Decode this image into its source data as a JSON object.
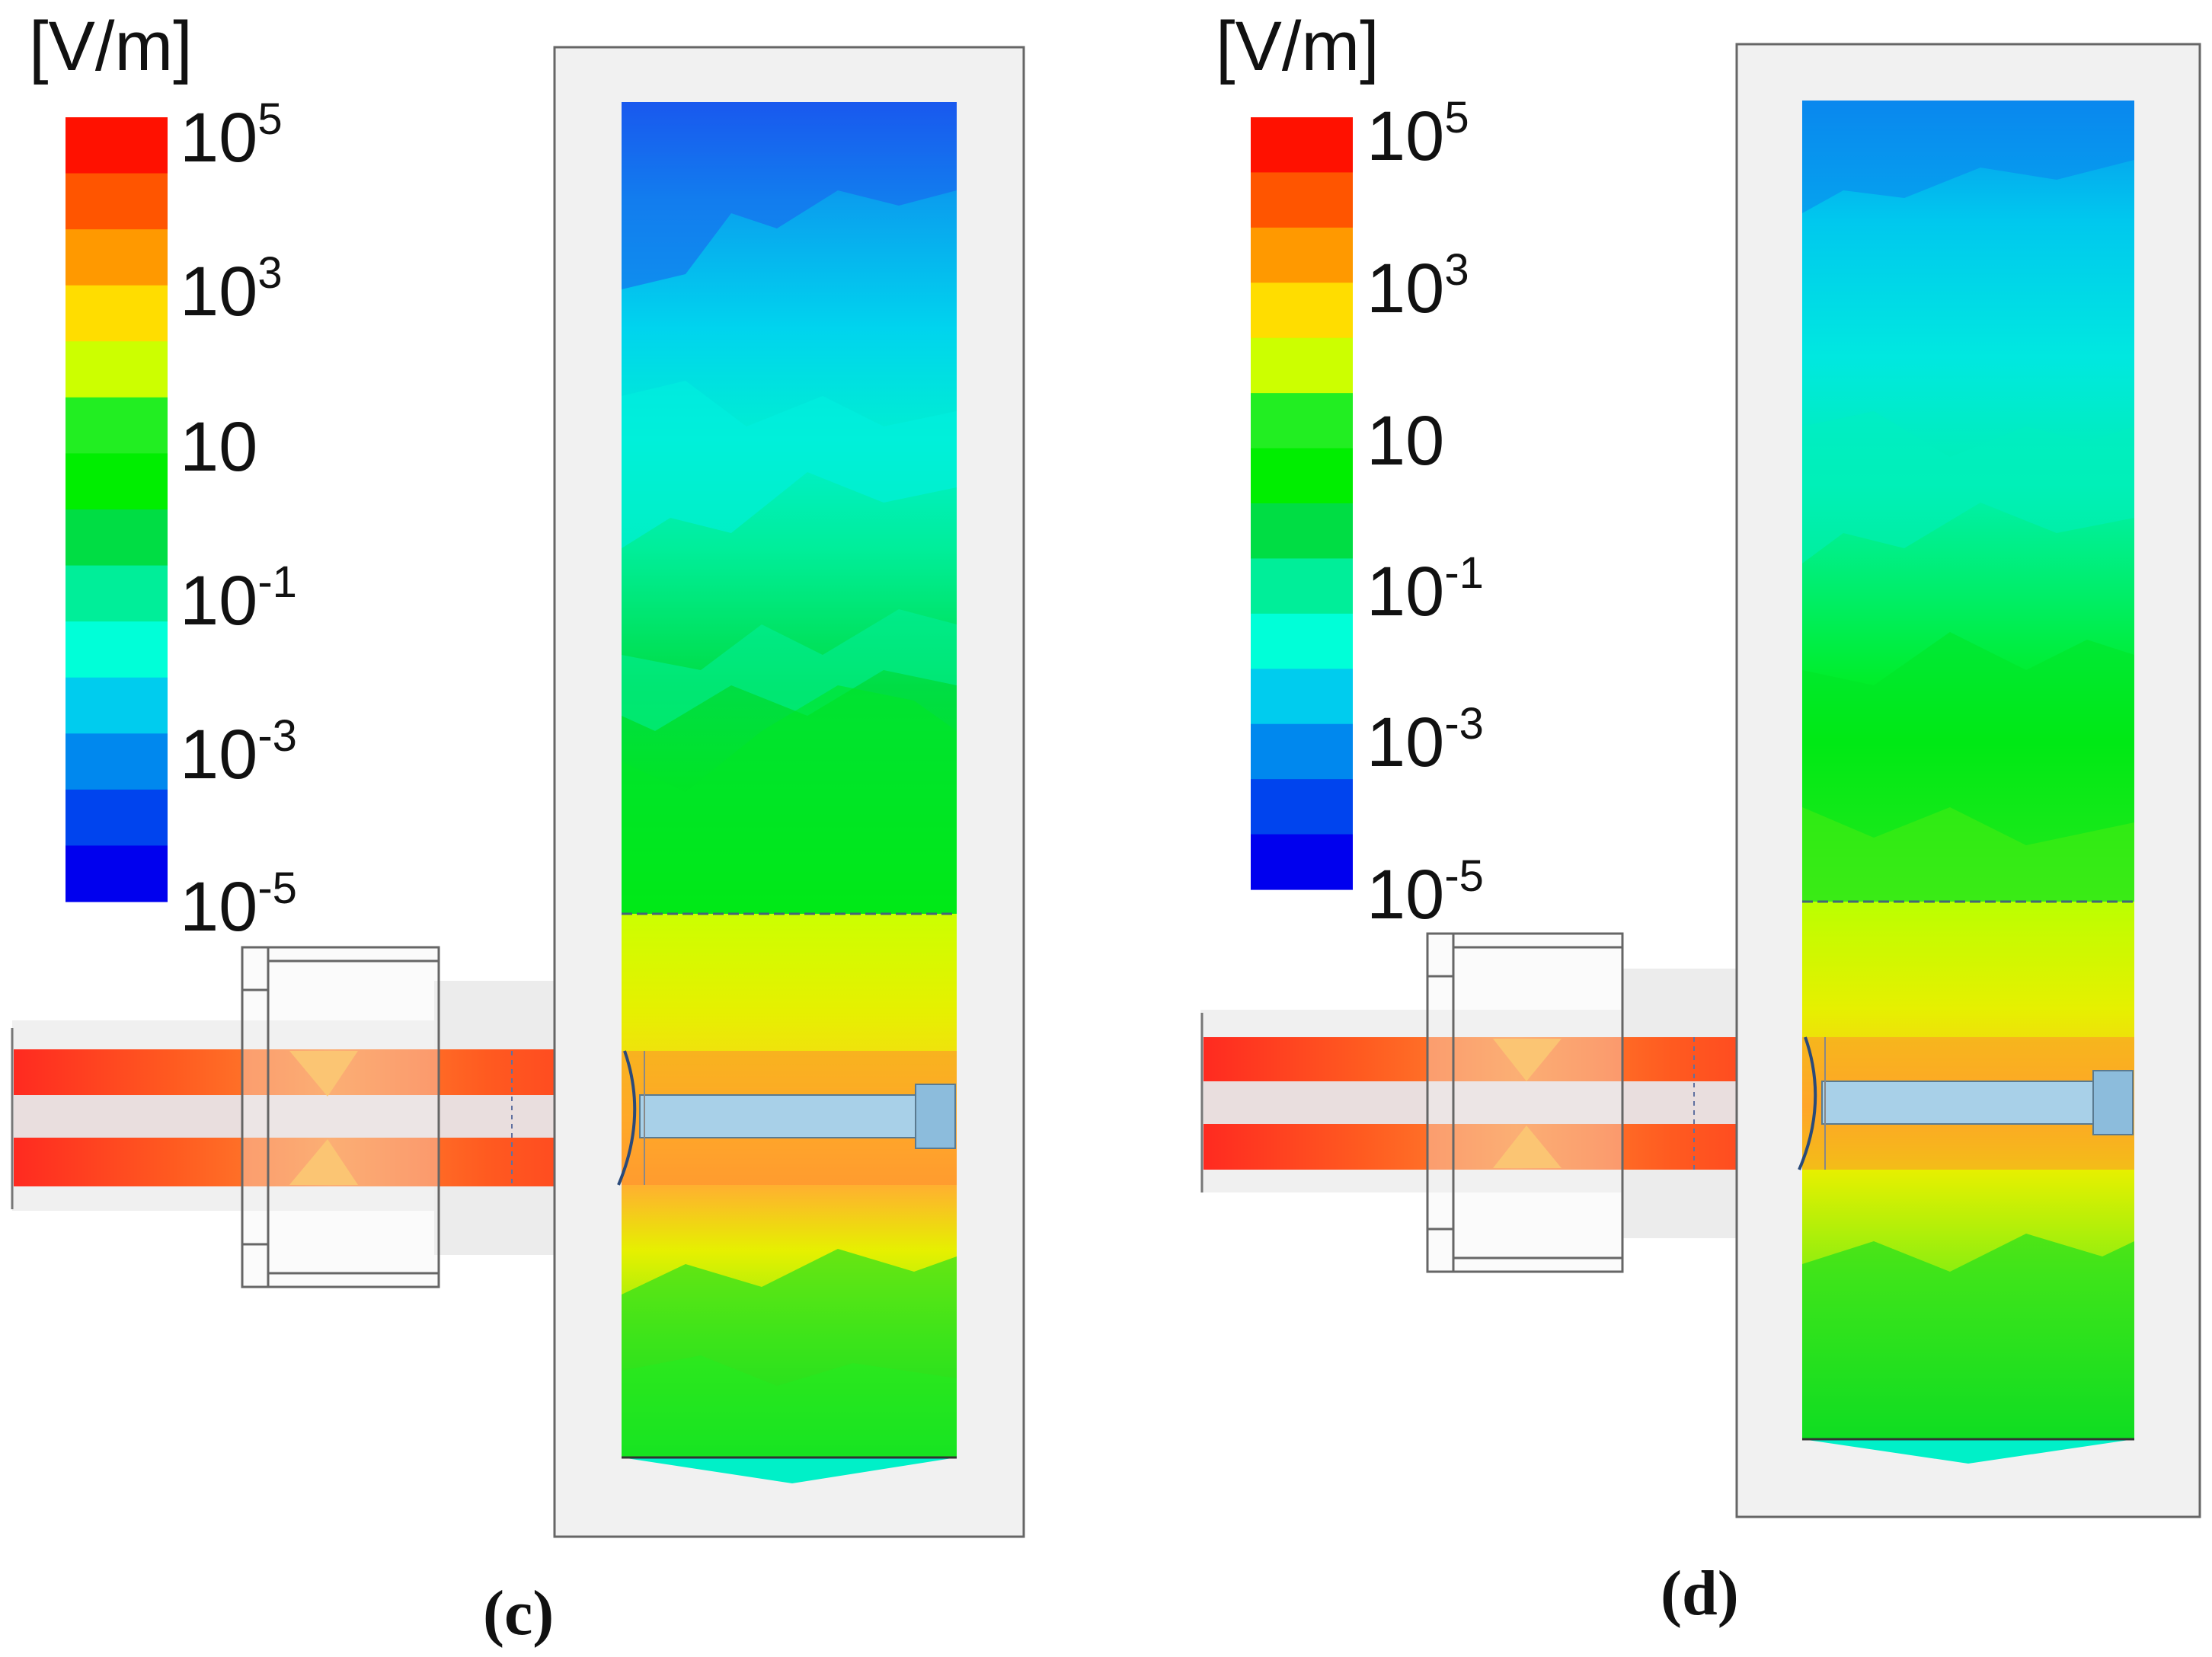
{
  "figure": {
    "colors": {
      "band_low_to_high": [
        "#0000ee",
        "#0044ee",
        "#0088ee",
        "#00ccee",
        "#00ffd8",
        "#00ee99",
        "#00dd44",
        "#00ee00",
        "#22ee22",
        "#ccff00",
        "#ffdd00",
        "#ff9900",
        "#ff5500",
        "#ff1100"
      ],
      "bore_fill": "#a8d0e8",
      "bore_light": "#e8e8e8",
      "housing": "#f1f1f1",
      "outline": "#555555"
    },
    "panels": [
      {
        "id": "c",
        "caption": "(c)",
        "legend": {
          "unit": "[V/m]",
          "ticks": [
            {
              "base": "10",
              "exp": "5"
            },
            {
              "base": "10",
              "exp": "3"
            },
            {
              "base": "10",
              "exp": ""
            },
            {
              "base": "10",
              "exp": "-1"
            },
            {
              "base": "10",
              "exp": "-3"
            },
            {
              "base": "10",
              "exp": "-5"
            }
          ]
        }
      },
      {
        "id": "d",
        "caption": "(d)",
        "legend": {
          "unit": "[V/m]",
          "ticks": [
            {
              "base": "10",
              "exp": "5"
            },
            {
              "base": "10",
              "exp": "3"
            },
            {
              "base": "10",
              "exp": ""
            },
            {
              "base": "10",
              "exp": "-1"
            },
            {
              "base": "10",
              "exp": "-3"
            },
            {
              "base": "10",
              "exp": "-5"
            }
          ]
        }
      }
    ]
  }
}
